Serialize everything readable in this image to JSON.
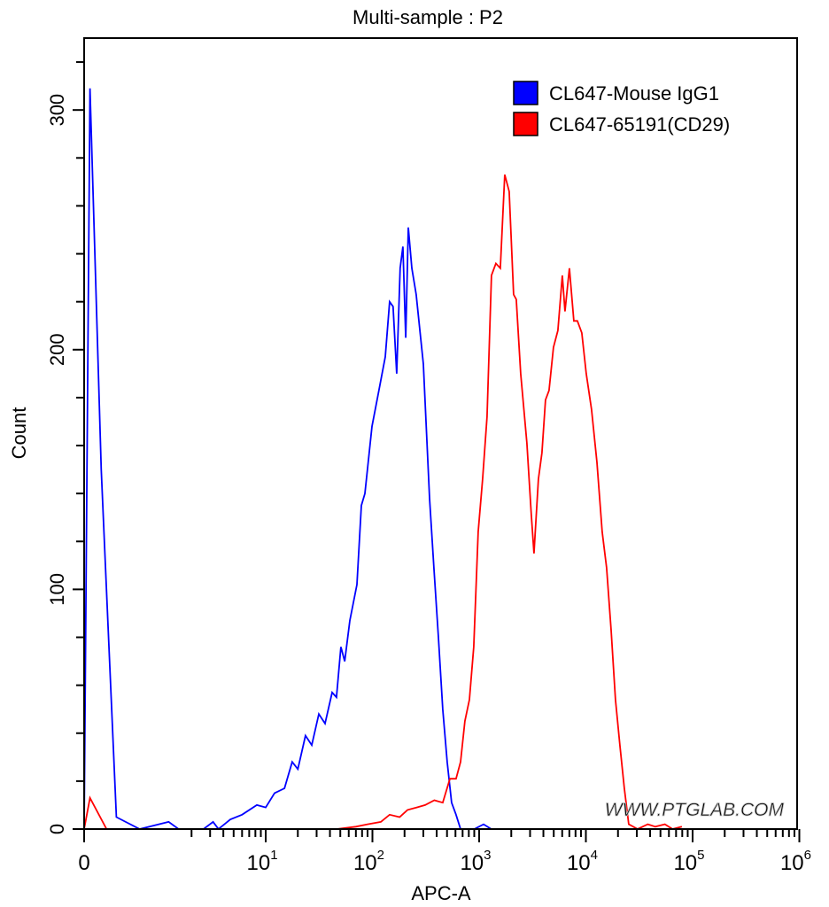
{
  "chart_data": {
    "type": "line",
    "title": "Multi-sample : P2",
    "xlabel": "APC-A",
    "ylabel": "Count",
    "x_scale": "biexponential",
    "xlim": [
      0,
      1000000
    ],
    "ylim": [
      0,
      330
    ],
    "x_ticks": [
      {
        "value": 0,
        "base": "0",
        "exp": ""
      },
      {
        "value": 10,
        "base": "10",
        "exp": "1"
      },
      {
        "value": 100,
        "base": "10",
        "exp": "2"
      },
      {
        "value": 1000,
        "base": "10",
        "exp": "3"
      },
      {
        "value": 10000,
        "base": "10",
        "exp": "4"
      },
      {
        "value": 100000,
        "base": "10",
        "exp": "5"
      },
      {
        "value": 1000000,
        "base": "10",
        "exp": "6"
      }
    ],
    "y_ticks": [
      "0",
      "100",
      "200",
      "300"
    ],
    "grid": false,
    "legend_position": "top-right",
    "watermark": "WWW.PTGLAB.COM",
    "series": [
      {
        "name": "CL647-Mouse IgG1",
        "color": "#0000ff",
        "points": [
          [
            0,
            0
          ],
          [
            0.05,
            309
          ],
          [
            0.15,
            150
          ],
          [
            0.3,
            5
          ],
          [
            0.6,
            0
          ],
          [
            1.2,
            3
          ],
          [
            1.5,
            0
          ],
          [
            2.6,
            0
          ],
          [
            3.2,
            3
          ],
          [
            3.6,
            0
          ],
          [
            4.65,
            4
          ],
          [
            6,
            6
          ],
          [
            8.25,
            10
          ],
          [
            10,
            9
          ],
          [
            12.1,
            15
          ],
          [
            15,
            17
          ],
          [
            17.7,
            28
          ],
          [
            20,
            25
          ],
          [
            23.6,
            39
          ],
          [
            27,
            35
          ],
          [
            31.5,
            48
          ],
          [
            36,
            44
          ],
          [
            41.9,
            57
          ],
          [
            46,
            55
          ],
          [
            50.7,
            76
          ],
          [
            55,
            70
          ],
          [
            61.5,
            87
          ],
          [
            71.6,
            102
          ],
          [
            78.8,
            135
          ],
          [
            85,
            140
          ],
          [
            99,
            168
          ],
          [
            115,
            183
          ],
          [
            132,
            197
          ],
          [
            145,
            220
          ],
          [
            156,
            218
          ],
          [
            169,
            190
          ],
          [
            182,
            234
          ],
          [
            193,
            243
          ],
          [
            205,
            205
          ],
          [
            217,
            251
          ],
          [
            234,
            234
          ],
          [
            257,
            223
          ],
          [
            300,
            194
          ],
          [
            343,
            138
          ],
          [
            377,
            109
          ],
          [
            415,
            80
          ],
          [
            456,
            50
          ],
          [
            502,
            28
          ],
          [
            552,
            11
          ],
          [
            607,
            6
          ],
          [
            669,
            0
          ],
          [
            900,
            0
          ],
          [
            1100,
            2
          ],
          [
            1300,
            0
          ]
        ]
      },
      {
        "name": "CL647-65191(CD29)",
        "color": "#ff0000",
        "points": [
          [
            0,
            0
          ],
          [
            0.05,
            13
          ],
          [
            0.2,
            0
          ],
          [
            46,
            0
          ],
          [
            70,
            1
          ],
          [
            90,
            2
          ],
          [
            120,
            3
          ],
          [
            145,
            6
          ],
          [
            180,
            5
          ],
          [
            213,
            8
          ],
          [
            260,
            9
          ],
          [
            312,
            10
          ],
          [
            380,
            12
          ],
          [
            456,
            11
          ],
          [
            532,
            21
          ],
          [
            607,
            21
          ],
          [
            669,
            28
          ],
          [
            735,
            45
          ],
          [
            810,
            54
          ],
          [
            890,
            76
          ],
          [
            979,
            124
          ],
          [
            1078,
            146
          ],
          [
            1186,
            172
          ],
          [
            1305,
            231
          ],
          [
            1436,
            236
          ],
          [
            1580,
            234
          ],
          [
            1738,
            273
          ],
          [
            1912,
            266
          ],
          [
            2103,
            223
          ],
          [
            2228,
            221
          ],
          [
            2451,
            190
          ],
          [
            2802,
            161
          ],
          [
            3084,
            131
          ],
          [
            3265,
            115
          ],
          [
            3593,
            146
          ],
          [
            3878,
            157
          ],
          [
            4186,
            179
          ],
          [
            4519,
            183
          ],
          [
            4973,
            201
          ],
          [
            5473,
            208
          ],
          [
            6018,
            231
          ],
          [
            6376,
            216
          ],
          [
            7015,
            234
          ],
          [
            7719,
            212
          ],
          [
            8329,
            212
          ],
          [
            9167,
            207
          ],
          [
            10082,
            190
          ],
          [
            11310,
            175
          ],
          [
            12692,
            153
          ],
          [
            14225,
            124
          ],
          [
            15654,
            109
          ],
          [
            17227,
            83
          ],
          [
            18945,
            54
          ],
          [
            20835,
            35
          ],
          [
            22929,
            17
          ],
          [
            25217,
            2
          ],
          [
            30519,
            0
          ],
          [
            38000,
            2
          ],
          [
            44767,
            1
          ],
          [
            55000,
            2
          ],
          [
            65000,
            0
          ],
          [
            79361,
            1
          ]
        ]
      }
    ]
  }
}
